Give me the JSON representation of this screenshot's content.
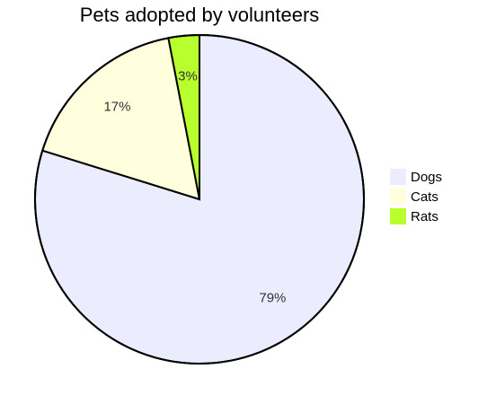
{
  "chart_data": {
    "type": "pie",
    "title": "Pets adopted by volunteers",
    "categories": [
      "Dogs",
      "Cats",
      "Rats"
    ],
    "values": [
      79,
      17,
      3
    ],
    "value_labels": [
      "79%",
      "17%",
      "3%"
    ],
    "colors": [
      "#ececff",
      "#ffffde",
      "#b9ff2e"
    ]
  }
}
